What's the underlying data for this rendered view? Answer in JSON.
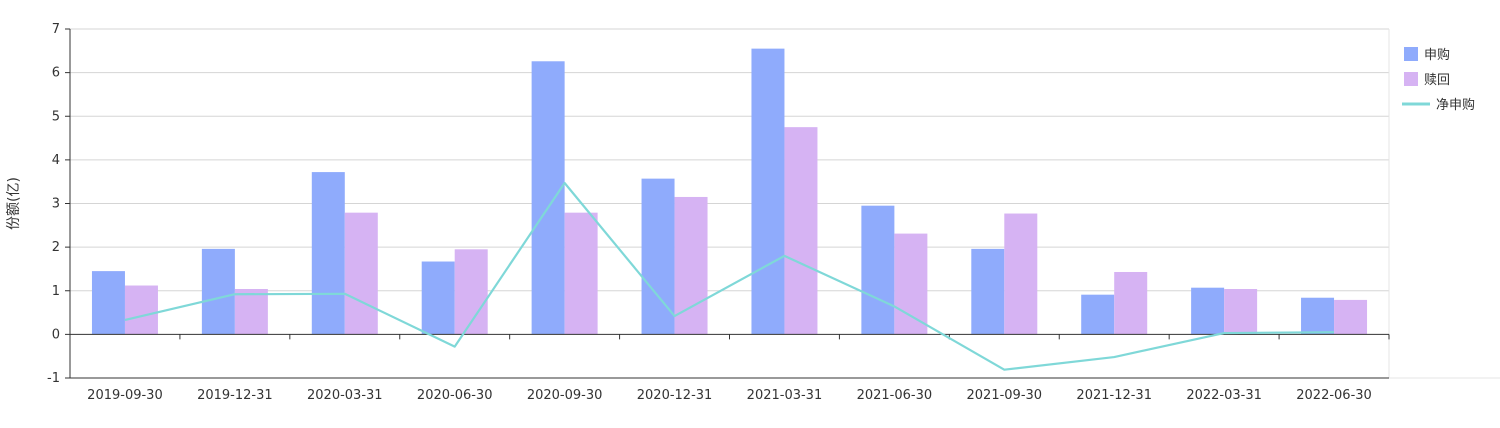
{
  "chart_data": {
    "type": "bar",
    "categories": [
      "2019-09-30",
      "2019-12-31",
      "2020-03-31",
      "2020-06-30",
      "2020-09-30",
      "2020-12-31",
      "2021-03-31",
      "2021-06-30",
      "2021-09-30",
      "2021-12-31",
      "2022-03-31",
      "2022-06-30"
    ],
    "series": [
      {
        "name": "申购",
        "type": "bar",
        "color": "#8fabfc",
        "values": [
          1.45,
          1.96,
          3.72,
          1.67,
          6.26,
          3.57,
          6.55,
          2.95,
          1.96,
          0.91,
          1.07,
          0.84
        ]
      },
      {
        "name": "赎回",
        "type": "bar",
        "color": "#d6b3f3",
        "values": [
          1.12,
          1.04,
          2.79,
          1.95,
          2.79,
          3.15,
          4.75,
          2.31,
          2.77,
          1.43,
          1.04,
          0.79
        ]
      },
      {
        "name": "净申购",
        "type": "line",
        "color": "#7fd8d8",
        "values": [
          0.33,
          0.92,
          0.93,
          -0.28,
          3.47,
          0.42,
          1.8,
          0.64,
          -0.81,
          -0.52,
          0.03,
          0.05
        ]
      }
    ],
    "ylabel": "份额(亿)",
    "xlabel": "",
    "ylim": [
      -1,
      7
    ],
    "yticks": [
      -1,
      0,
      1,
      2,
      3,
      4,
      5,
      6,
      7
    ],
    "grid": true,
    "legend_position": "right"
  }
}
